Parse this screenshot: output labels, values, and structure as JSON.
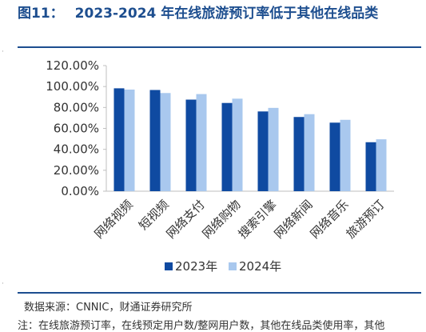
{
  "figure": {
    "number": "图11：",
    "title": "2023-2024 年在线旅游预订率低于其他在线品类"
  },
  "source": "数据来源：CNNIC，财通证券研究所",
  "note": "注：在线旅游预订率，在线预定用户数/整网用户数，其他在线品类使用率，其他",
  "colors": {
    "title": "#1d4e8f",
    "series_2023": "#0f4aa1",
    "series_2024": "#a9c8ee",
    "axis": "#bfbfbf"
  },
  "chart_data": {
    "type": "bar",
    "categories": [
      "网络视频",
      "短视频",
      "网络支付",
      "网络购物",
      "搜索引擎",
      "网络新闻",
      "网络音乐",
      "旅游预订"
    ],
    "series": [
      {
        "name": "2023年",
        "values": [
          98.3,
          96.7,
          87.5,
          84.3,
          76.2,
          70.9,
          65.5,
          46.8
        ]
      },
      {
        "name": "2024年",
        "values": [
          97.1,
          93.8,
          92.8,
          88.4,
          79.6,
          73.6,
          68.2,
          49.6
        ]
      }
    ],
    "yticks": [
      "0.00%",
      "20.00%",
      "40.00%",
      "60.00%",
      "80.00%",
      "100.00%",
      "120.00%"
    ],
    "ylim": [
      0,
      120
    ],
    "ytick_step": 20,
    "legend_position": "bottom",
    "grid": false
  }
}
